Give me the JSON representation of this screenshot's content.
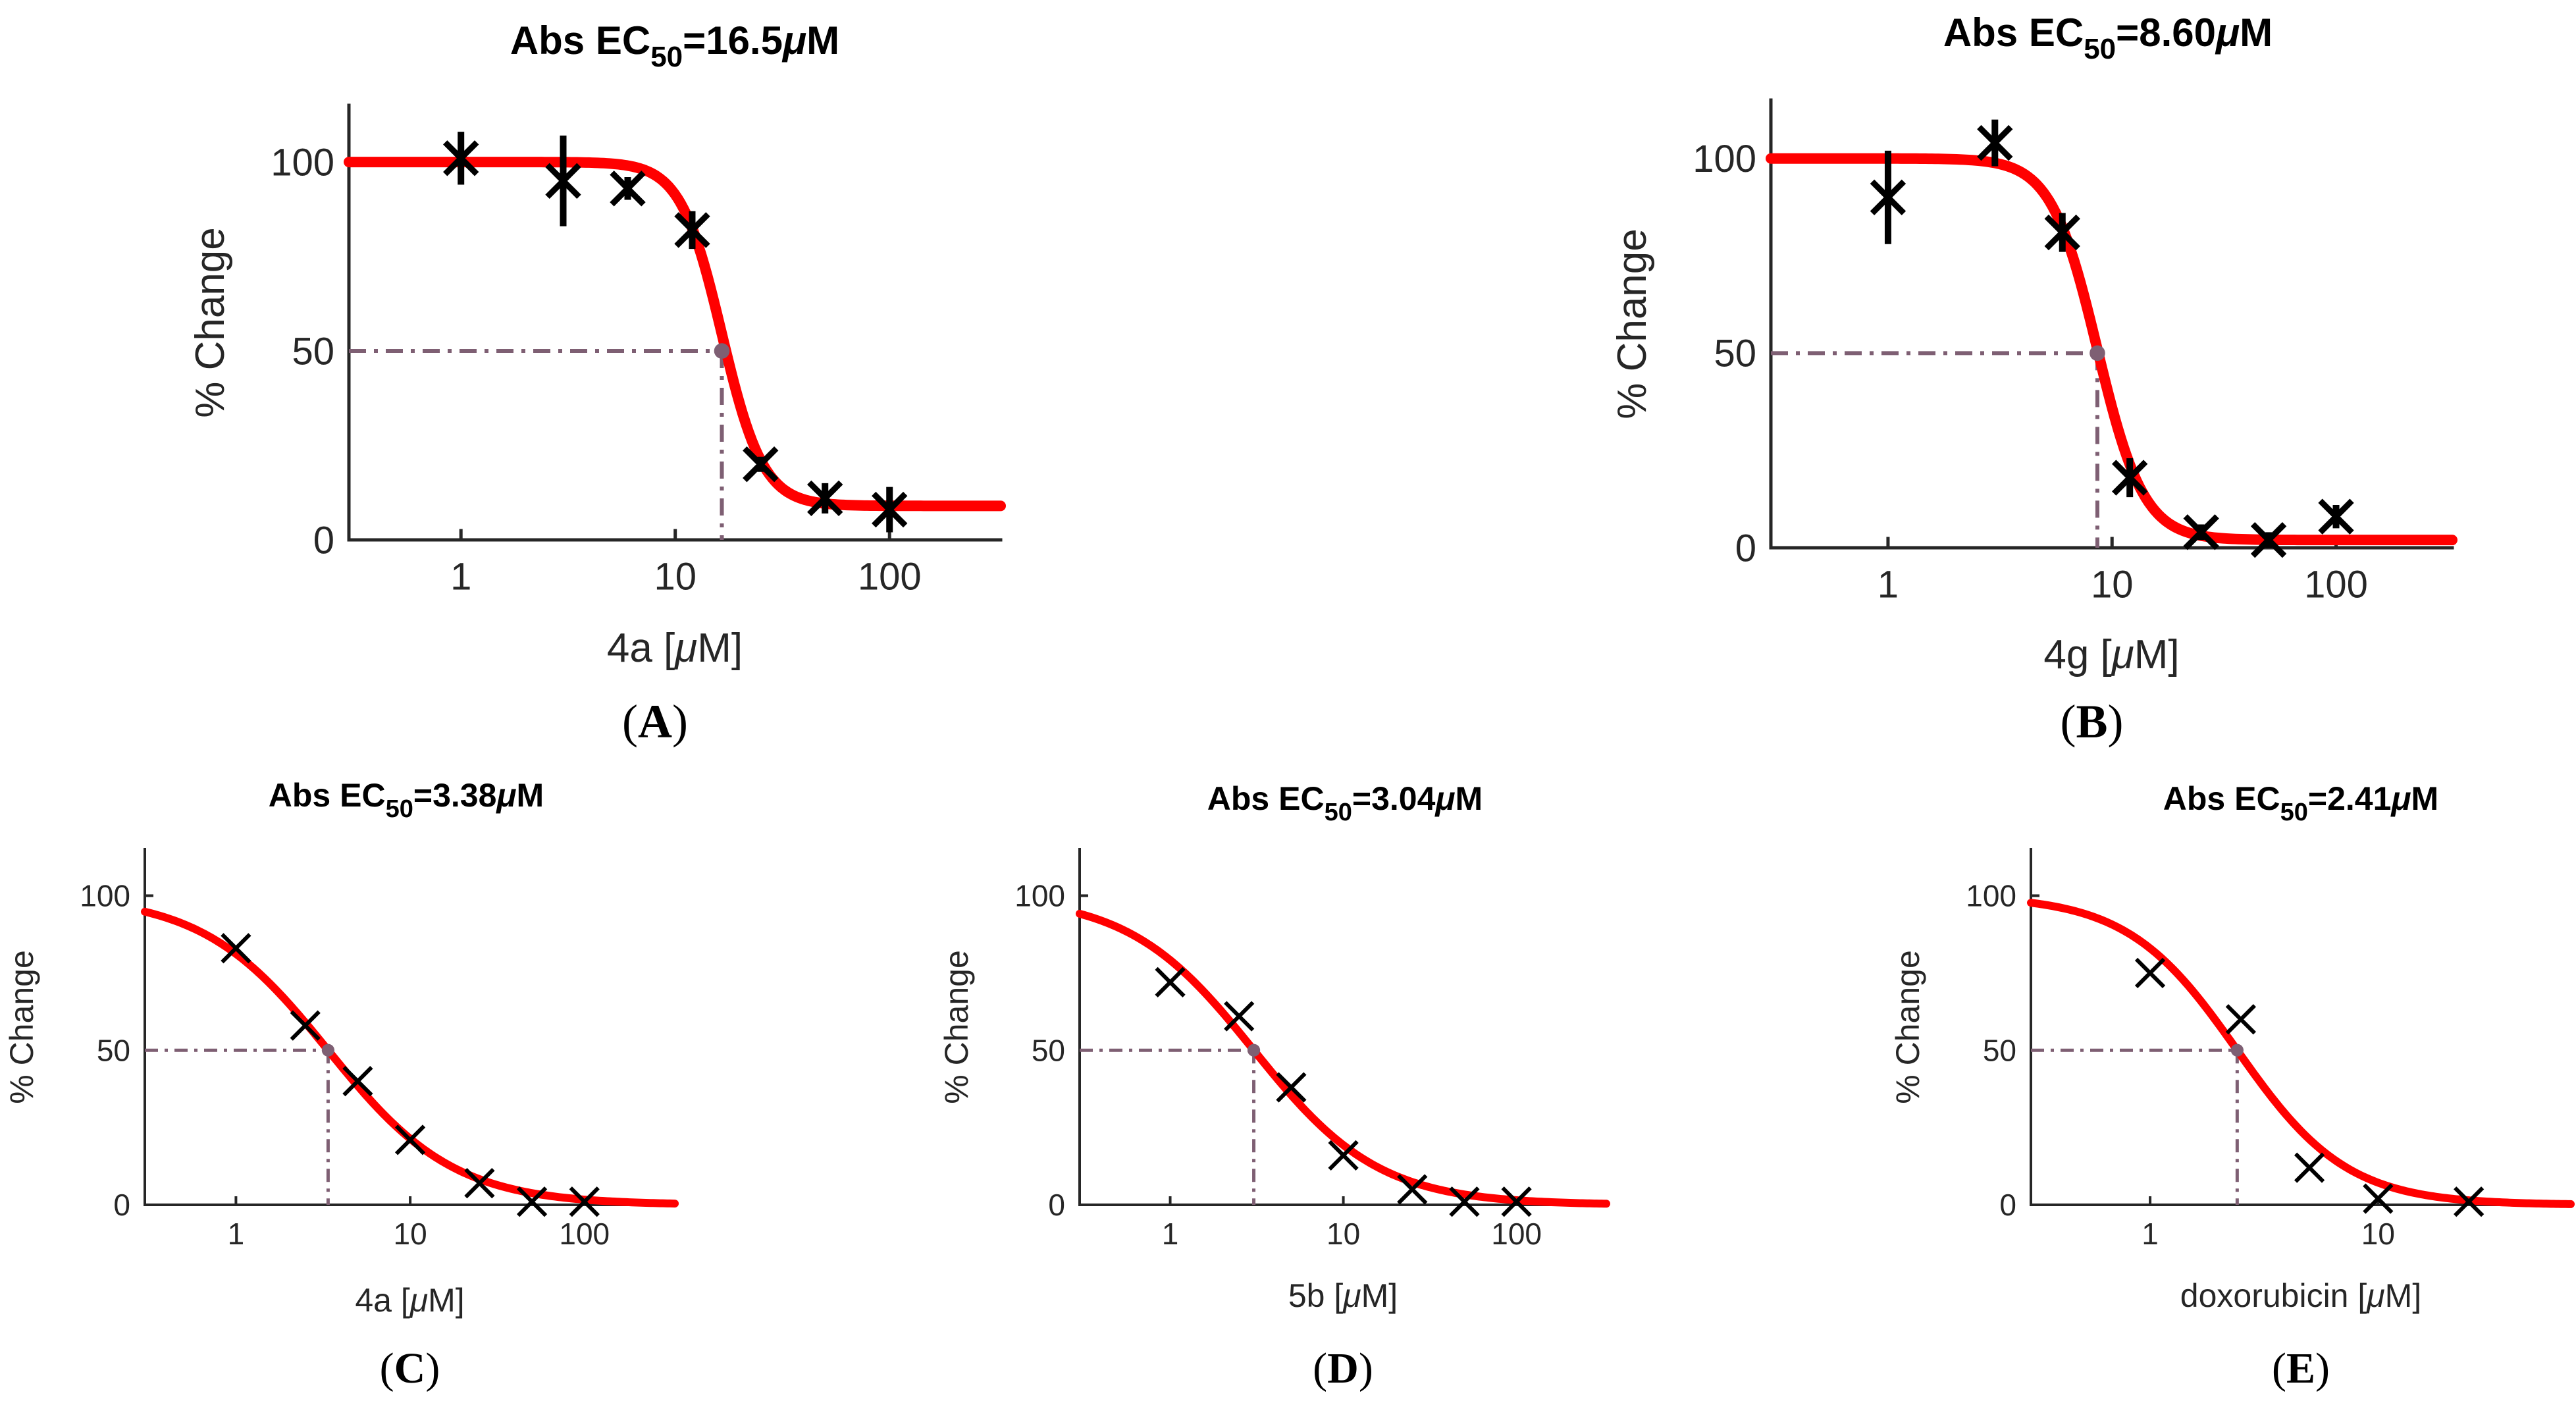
{
  "chart_data": [
    {
      "panel_label": "A",
      "type": "scatter",
      "title_prefix": "Abs EC",
      "title_sub": "50",
      "title_value": "=16.5",
      "title_unit": "μM",
      "xlabel_prefix": "4a [",
      "xlabel_unit": "μM",
      "xlabel_suffix": "]",
      "ylabel": "% Change",
      "xscale": "log",
      "xlim": [
        0.3,
        330
      ],
      "ylim": [
        0,
        115
      ],
      "xticks": [
        1,
        10,
        100
      ],
      "xtick_labels": [
        "1",
        "10",
        "100"
      ],
      "yticks": [
        0,
        50,
        100
      ],
      "ytick_labels": [
        "0",
        "50",
        "100"
      ],
      "ec50": 16.5,
      "fit": {
        "top": 100,
        "bottom": 9,
        "hill": 4.5
      },
      "points": [
        {
          "x": 1,
          "y": 101,
          "err": 7
        },
        {
          "x": 3,
          "y": 95,
          "err": 12
        },
        {
          "x": 6,
          "y": 93,
          "err": 3
        },
        {
          "x": 12,
          "y": 82,
          "err": 5
        },
        {
          "x": 25,
          "y": 20,
          "err": 2
        },
        {
          "x": 50,
          "y": 11,
          "err": 4
        },
        {
          "x": 100,
          "y": 8,
          "err": 6
        }
      ]
    },
    {
      "panel_label": "B",
      "type": "scatter",
      "title_prefix": "Abs EC",
      "title_sub": "50",
      "title_value": "=8.60",
      "title_unit": "μM",
      "xlabel_prefix": "4g [",
      "xlabel_unit": "μM",
      "xlabel_suffix": "]",
      "ylabel": "% Change",
      "xscale": "log",
      "xlim": [
        0.3,
        330
      ],
      "ylim": [
        0,
        115
      ],
      "xticks": [
        1,
        10,
        100
      ],
      "xtick_labels": [
        "1",
        "10",
        "100"
      ],
      "yticks": [
        0,
        50,
        100
      ],
      "ytick_labels": [
        "0",
        "50",
        "100"
      ],
      "ec50": 8.6,
      "fit": {
        "top": 100,
        "bottom": 2,
        "hill": 4.2
      },
      "points": [
        {
          "x": 1,
          "y": 90,
          "err": 12
        },
        {
          "x": 3,
          "y": 104,
          "err": 6
        },
        {
          "x": 6,
          "y": 81,
          "err": 5
        },
        {
          "x": 12,
          "y": 18,
          "err": 5
        },
        {
          "x": 25,
          "y": 4,
          "err": 2
        },
        {
          "x": 50,
          "y": 2,
          "err": 2
        },
        {
          "x": 100,
          "y": 8,
          "err": 3
        }
      ]
    },
    {
      "panel_label": "C",
      "type": "scatter",
      "title_prefix": "Abs EC",
      "title_sub": "50",
      "title_value": "=3.38",
      "title_unit": "μM",
      "xlabel_prefix": "4a [",
      "xlabel_unit": "μM",
      "xlabel_suffix": "]",
      "ylabel": "% Change",
      "xscale": "log",
      "xlim": [
        0.3,
        330
      ],
      "ylim": [
        0,
        115
      ],
      "xticks": [
        1,
        10,
        100
      ],
      "xtick_labels": [
        "1",
        "10",
        "100"
      ],
      "yticks": [
        0,
        50,
        100
      ],
      "ytick_labels": [
        "0",
        "50",
        "100"
      ],
      "ec50": 3.38,
      "fit": {
        "top": 100,
        "bottom": 0,
        "hill": 1.2
      },
      "points": [
        {
          "x": 1,
          "y": 83,
          "err": 0
        },
        {
          "x": 2.5,
          "y": 58,
          "err": 0
        },
        {
          "x": 5,
          "y": 40,
          "err": 0
        },
        {
          "x": 10,
          "y": 21,
          "err": 0
        },
        {
          "x": 25,
          "y": 7,
          "err": 0
        },
        {
          "x": 50,
          "y": 1,
          "err": 0
        },
        {
          "x": 100,
          "y": 1,
          "err": 0
        }
      ]
    },
    {
      "panel_label": "D",
      "type": "scatter",
      "title_prefix": "Abs EC",
      "title_sub": "50",
      "title_value": "=3.04",
      "title_unit": "μM",
      "xlabel_prefix": "5b [",
      "xlabel_unit": "μM",
      "xlabel_suffix": "]",
      "ylabel": "% Change",
      "xscale": "log",
      "xlim": [
        0.3,
        330
      ],
      "ylim": [
        0,
        115
      ],
      "xticks": [
        1,
        10,
        100
      ],
      "xtick_labels": [
        "1",
        "10",
        "100"
      ],
      "yticks": [
        0,
        50,
        100
      ],
      "ytick_labels": [
        "0",
        "50",
        "100"
      ],
      "ec50": 3.04,
      "fit": {
        "top": 100,
        "bottom": 0,
        "hill": 1.2
      },
      "points": [
        {
          "x": 1,
          "y": 72,
          "err": 0
        },
        {
          "x": 2.5,
          "y": 61,
          "err": 0
        },
        {
          "x": 5,
          "y": 38,
          "err": 0
        },
        {
          "x": 10,
          "y": 16,
          "err": 0
        },
        {
          "x": 25,
          "y": 5,
          "err": 0
        },
        {
          "x": 50,
          "y": 1,
          "err": 0
        },
        {
          "x": 100,
          "y": 1,
          "err": 0
        }
      ]
    },
    {
      "panel_label": "E",
      "type": "scatter",
      "title_prefix": "Abs EC",
      "title_sub": "50",
      "title_value": "=2.41",
      "title_unit": "μM",
      "xlabel_prefix": "doxorubicin [",
      "xlabel_unit": "μM",
      "xlabel_suffix": "]",
      "ylabel": "% Change",
      "xscale": "log",
      "xlim": [
        0.3,
        70
      ],
      "ylim": [
        0,
        115
      ],
      "xticks": [
        1,
        10
      ],
      "xtick_labels": [
        "1",
        "10"
      ],
      "yticks": [
        0,
        50,
        100
      ],
      "ytick_labels": [
        "0",
        "50",
        "100"
      ],
      "ec50": 2.41,
      "fit": {
        "top": 100,
        "bottom": 0,
        "hill": 1.8
      },
      "points": [
        {
          "x": 1,
          "y": 75,
          "err": 0
        },
        {
          "x": 2.5,
          "y": 60,
          "err": 0
        },
        {
          "x": 5,
          "y": 12,
          "err": 0
        },
        {
          "x": 10,
          "y": 2,
          "err": 0
        },
        {
          "x": 25,
          "y": 1,
          "err": 0
        }
      ]
    }
  ]
}
